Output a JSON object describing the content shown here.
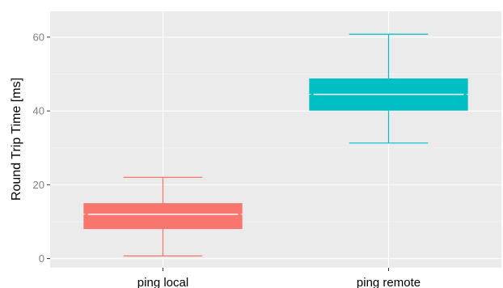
{
  "chart_data": {
    "type": "box",
    "ylabel": "Round Trip Time [ms]",
    "xlabel": "",
    "categories": [
      "ping local",
      "ping remote"
    ],
    "ylim": [
      -2.5,
      67
    ],
    "yticks": [
      0,
      20,
      40,
      60
    ],
    "grid": true,
    "notched": true,
    "boxes": [
      {
        "category": "ping local",
        "min": 0.7,
        "q1": 8.1,
        "median": 12.0,
        "q3": 14.9,
        "max": 22.0,
        "color": "#F8766D"
      },
      {
        "category": "ping remote",
        "min": 31.3,
        "q1": 40.2,
        "median": 44.5,
        "q3": 48.7,
        "max": 60.8,
        "color": "#00BFC4"
      }
    ]
  }
}
